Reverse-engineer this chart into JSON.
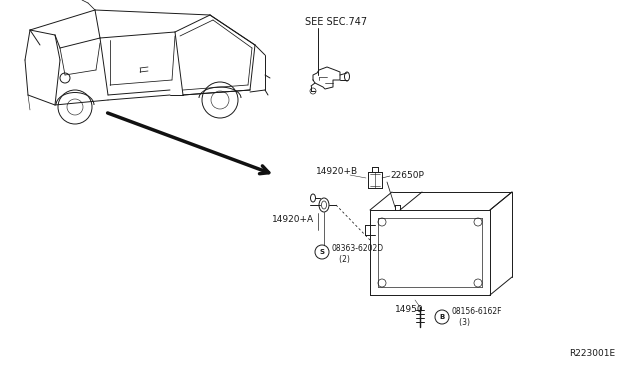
{
  "bg_color": "#ffffff",
  "line_color": "#1a1a1a",
  "fig_width": 6.4,
  "fig_height": 3.72,
  "dpi": 100,
  "ref_code": "R223001E",
  "labels": {
    "see_sec": "SEE SEC.747",
    "part_22650P": "22650P",
    "part_14920B": "14920+B",
    "part_14920A": "14920+A",
    "part_14950": "14950",
    "screw_label": "08363-6202D\n   (2)",
    "bolt_label": "08156-6162F\n   (3)"
  }
}
